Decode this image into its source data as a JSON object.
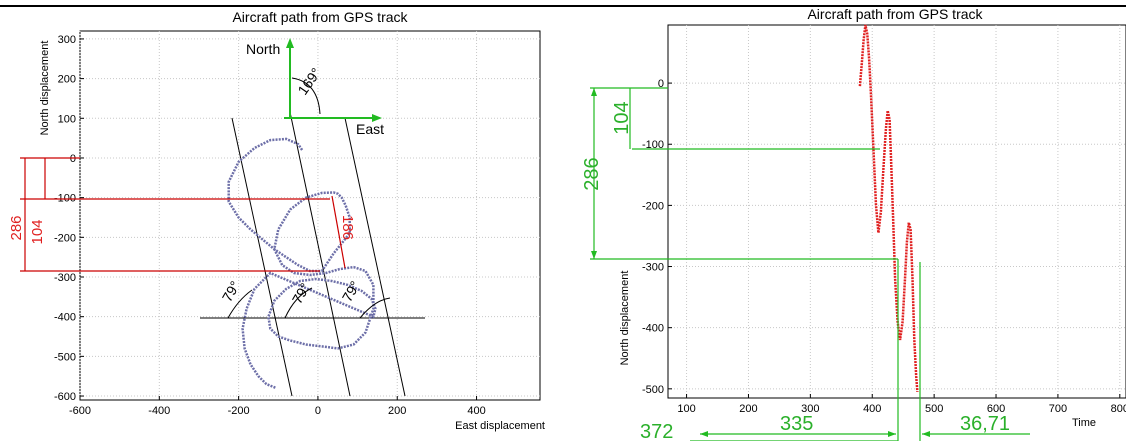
{
  "colors": {
    "track": "#6d6fa8",
    "red_track": "#e02020",
    "green": "#22bb22",
    "red_annot": "#cc0000",
    "grid": "#c8c8c8"
  },
  "chart_data": [
    {
      "type": "line",
      "title": "Aircraft path from GPS track",
      "xlabel": "East displacement",
      "ylabel": "North displacement",
      "xlim": [
        -600,
        560
      ],
      "ylim": [
        -610,
        320
      ],
      "x_ticks": [
        "-600",
        "-400",
        "-200",
        "0",
        "200",
        "400"
      ],
      "y_ticks": [
        "300",
        "200",
        "100",
        "0",
        "-100",
        "-200",
        "-300",
        "-400",
        "-500",
        "-600"
      ],
      "grid": true,
      "annotations": {
        "north": "North",
        "east": "East",
        "heading": "169°",
        "angle_1": "79°",
        "angle_2": "79°",
        "angle_3": "79°",
        "dist_286": "286",
        "dist_104": "104",
        "dist_186": "186"
      },
      "path": {
        "x": [
          -40,
          -50,
          -80,
          -120,
          -160,
          -200,
          -225,
          -225,
          -200,
          -170,
          -140,
          -110,
          -80,
          -50,
          -20,
          10,
          40,
          80,
          80,
          70,
          60,
          50,
          40,
          10,
          -30,
          -70,
          -100,
          -110,
          -90,
          -60,
          -20,
          20,
          55,
          90,
          120,
          140,
          140,
          120,
          90,
          50,
          10,
          -30,
          -70,
          -100,
          -120,
          -125,
          -110,
          -80,
          -45,
          -5,
          35,
          75,
          110,
          135,
          145,
          140,
          -120,
          -160,
          -180,
          -190,
          -185,
          -170,
          -150,
          -130,
          -105
        ],
        "y": [
          20,
          35,
          48,
          45,
          25,
          -10,
          -60,
          -110,
          -150,
          -180,
          -205,
          -230,
          -250,
          -270,
          -285,
          -285,
          -240,
          -190,
          -150,
          -120,
          -100,
          -90,
          -87,
          -88,
          -100,
          -130,
          -180,
          -230,
          -270,
          -290,
          -295,
          -290,
          -280,
          -275,
          -285,
          -320,
          -380,
          -440,
          -470,
          -480,
          -475,
          -470,
          -460,
          -450,
          -430,
          -400,
          -360,
          -330,
          -310,
          -305,
          -310,
          -320,
          -335,
          -355,
          -380,
          -400,
          -290,
          -330,
          -380,
          -430,
          -480,
          -520,
          -550,
          -570,
          -580
        ]
      }
    },
    {
      "type": "line",
      "title": "Aircraft path from GPS track",
      "xlabel": "Time",
      "ylabel": "North displacement",
      "xlim": [
        70,
        810
      ],
      "ylim": [
        -515,
        95
      ],
      "x_ticks": [
        "100",
        "200",
        "300",
        "400",
        "500",
        "600",
        "700",
        "800"
      ],
      "y_ticks": [
        "0",
        "-100",
        "-200",
        "-300",
        "-400",
        "-500"
      ],
      "grid": true,
      "annotations": {
        "dist_286": "286",
        "dist_104": "104",
        "t_372": "372",
        "t_335": "335",
        "t_3671": "36,71"
      },
      "series": [
        {
          "x": [
            380,
            383,
            386,
            389,
            392,
            395,
            398,
            402,
            406,
            410,
            414,
            418,
            422,
            425,
            428,
            431,
            434,
            437,
            441,
            445,
            449,
            453,
            456,
            459,
            462,
            465,
            468,
            471,
            473
          ],
          "y": [
            -5,
            30,
            70,
            95,
            80,
            40,
            -20,
            -110,
            -200,
            -245,
            -210,
            -140,
            -75,
            -45,
            -60,
            -140,
            -230,
            -320,
            -390,
            -420,
            -390,
            -320,
            -260,
            -228,
            -240,
            -320,
            -420,
            -480,
            -505
          ]
        }
      ]
    }
  ]
}
